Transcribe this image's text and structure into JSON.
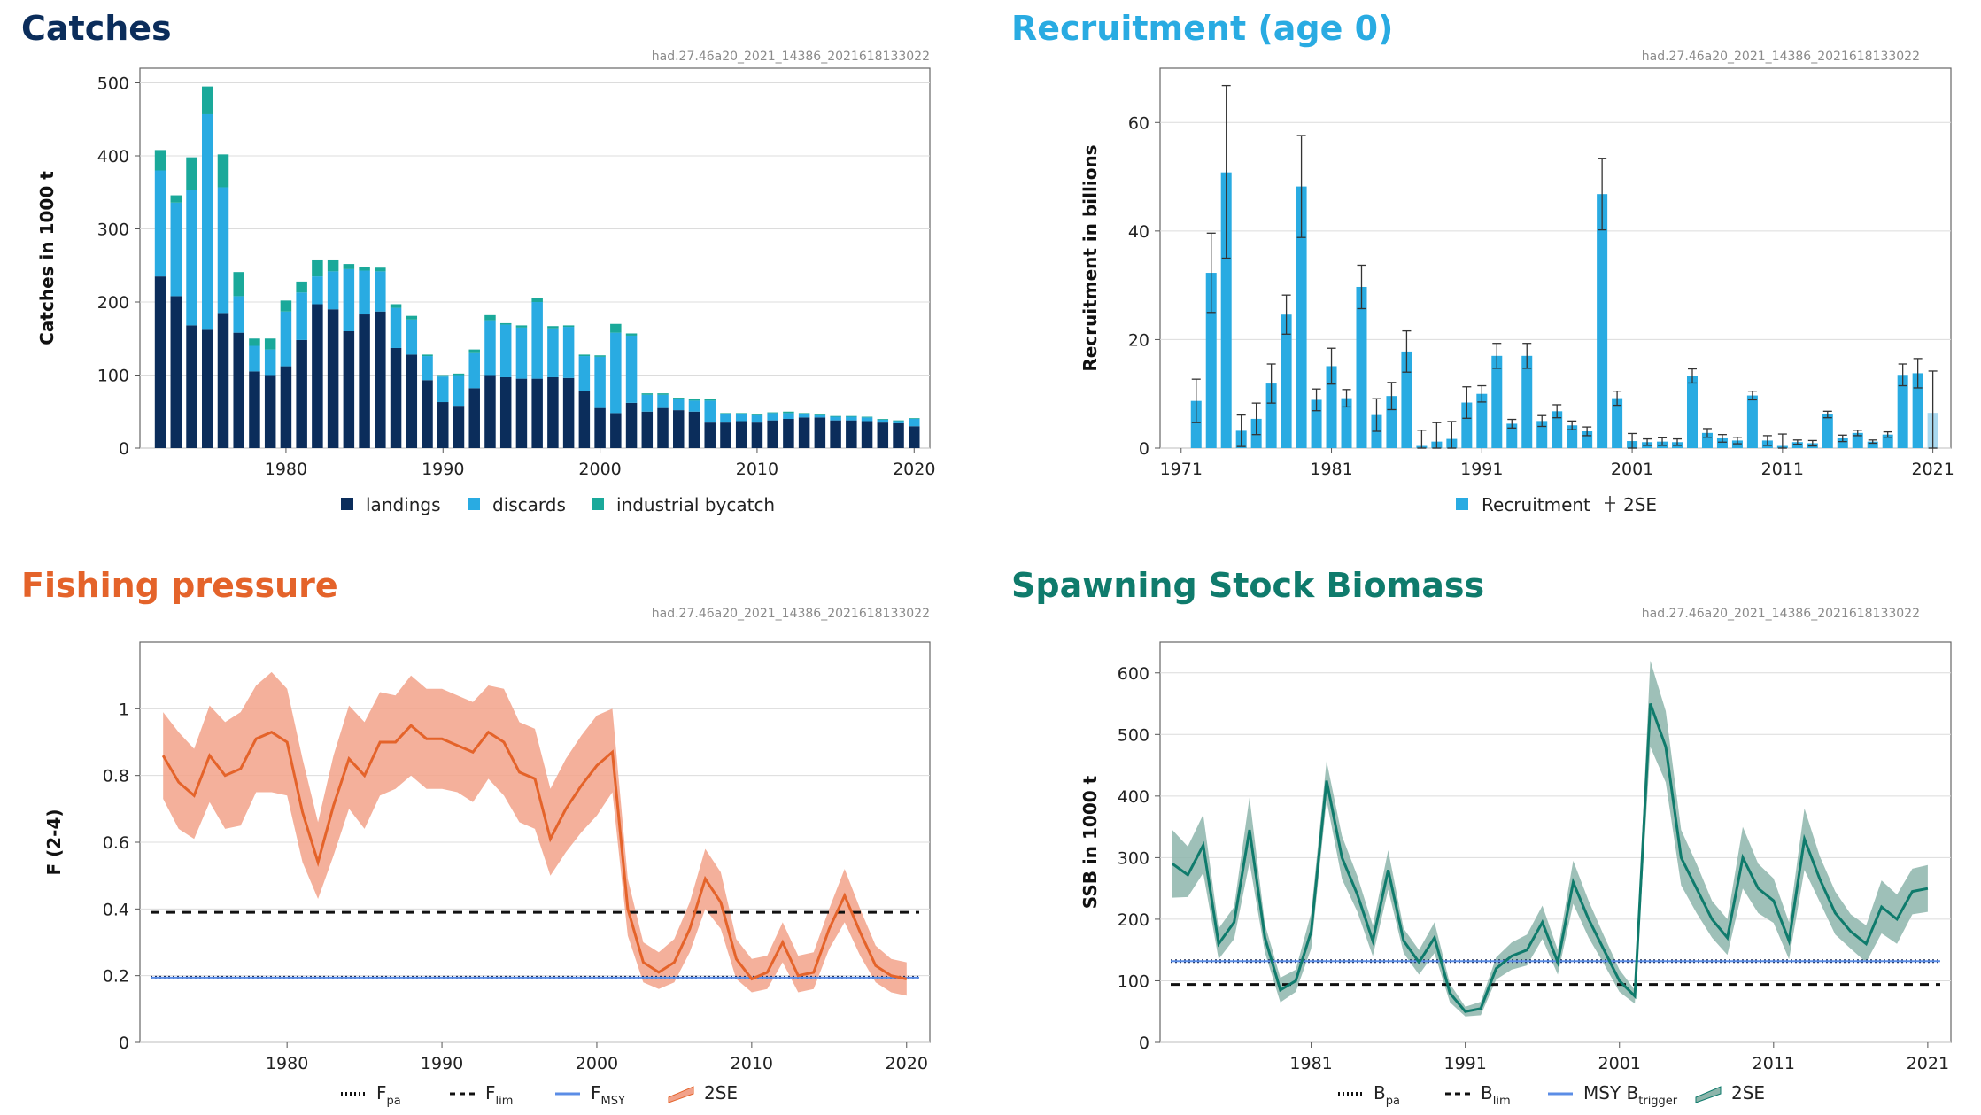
{
  "panels": {
    "catches": {
      "title": "Catches",
      "code": "had.27.46a20_2021_14386_2021618133022",
      "color": "#0b2d5b"
    },
    "recruitment": {
      "title": "Recruitment (age 0)",
      "code": "had.27.46a20_2021_14386_2021618133022",
      "color": "#29abe2"
    },
    "fishing": {
      "title": "Fishing pressure",
      "code": "had.27.46a20_2021_14386_2021618133022",
      "color": "#e4632a"
    },
    "ssb": {
      "title": "Spawning Stock Biomass",
      "code": "had.27.46a20_2021_14386_2021618133022",
      "color": "#0f7b6c"
    }
  },
  "chart_data": [
    {
      "type": "bar",
      "title": "Catches",
      "ylabel": "Catches in 1000 t",
      "xlabel": "",
      "ylim": [
        0,
        520
      ],
      "xlim": [
        1970.7,
        2021
      ],
      "yticks": [
        "0",
        "100",
        "200",
        "300",
        "400",
        "500"
      ],
      "xticks": [
        "1980",
        "1990",
        "2000",
        "2010",
        "2020"
      ],
      "stacked": true,
      "years": [
        1972,
        1973,
        1974,
        1975,
        1976,
        1977,
        1978,
        1979,
        1980,
        1981,
        1982,
        1983,
        1984,
        1985,
        1986,
        1987,
        1988,
        1989,
        1990,
        1991,
        1992,
        1993,
        1994,
        1995,
        1996,
        1997,
        1998,
        1999,
        2000,
        2001,
        2002,
        2003,
        2004,
        2005,
        2006,
        2007,
        2008,
        2009,
        2010,
        2011,
        2012,
        2013,
        2014,
        2015,
        2016,
        2017,
        2018,
        2019,
        2020
      ],
      "series": [
        {
          "name": "landings",
          "color": "#0b2d5b",
          "values": [
            235,
            208,
            168,
            162,
            185,
            158,
            105,
            100,
            112,
            148,
            197,
            190,
            160,
            183,
            187,
            137,
            128,
            93,
            63,
            58,
            82,
            100,
            97,
            95,
            95,
            97,
            96,
            78,
            55,
            48,
            62,
            50,
            55,
            52,
            50,
            35,
            35,
            37,
            35,
            38,
            40,
            42,
            42,
            38,
            38,
            37,
            35,
            34,
            30
          ]
        },
        {
          "name": "discards",
          "color": "#29abe2",
          "values": [
            145,
            128,
            185,
            295,
            172,
            50,
            35,
            35,
            75,
            65,
            38,
            52,
            85,
            60,
            55,
            55,
            48,
            33,
            35,
            42,
            48,
            75,
            72,
            70,
            105,
            67,
            70,
            48,
            70,
            110,
            92,
            23,
            18,
            15,
            15,
            30,
            12,
            10,
            10,
            10,
            8,
            5,
            3,
            5,
            5,
            5,
            4,
            3,
            10
          ]
        },
        {
          "name": "industrial bycatch",
          "color": "#1aa99a",
          "values": [
            28,
            10,
            45,
            38,
            45,
            33,
            10,
            15,
            15,
            15,
            22,
            15,
            7,
            5,
            5,
            5,
            5,
            2,
            2,
            2,
            5,
            7,
            2,
            3,
            5,
            3,
            2,
            2,
            2,
            12,
            3,
            2,
            2,
            2,
            2,
            2,
            1,
            1,
            1,
            1,
            2,
            1,
            1,
            1,
            1,
            1,
            1,
            1,
            1
          ]
        }
      ]
    },
    {
      "type": "bar",
      "title": "Recruitment (age 0)",
      "ylabel": "Recruitment in billions",
      "xlabel": "",
      "ylim": [
        0,
        70
      ],
      "xlim": [
        1969.6,
        2022.2
      ],
      "yticks": [
        "0",
        "20",
        "40",
        "60"
      ],
      "xticks": [
        "1971",
        "1981",
        "1991",
        "2001",
        "2011",
        "2021"
      ],
      "series": [
        {
          "name": "Recruitment",
          "color": "#29abe2",
          "years": [
            1972,
            1973,
            1974,
            1975,
            1976,
            1977,
            1978,
            1979,
            1980,
            1981,
            1982,
            1983,
            1984,
            1985,
            1986,
            1987,
            1988,
            1989,
            1990,
            1991,
            1992,
            1993,
            1994,
            1995,
            1996,
            1997,
            1998,
            1999,
            2000,
            2001,
            2002,
            2003,
            2004,
            2005,
            2006,
            2007,
            2008,
            2009,
            2010,
            2011,
            2012,
            2013,
            2014,
            2015,
            2016,
            2017,
            2018,
            2019,
            2020,
            2021
          ],
          "values": [
            8.7,
            32.3,
            50.8,
            3.2,
            5.4,
            11.9,
            24.6,
            48.2,
            8.9,
            15.1,
            9.2,
            29.7,
            6.1,
            9.6,
            17.8,
            0.4,
            1.2,
            1.7,
            8.4,
            10,
            17,
            4.5,
            17,
            5,
            6.8,
            4.2,
            3.1,
            46.8,
            9.2,
            1.3,
            1.1,
            1.2,
            1.1,
            13.3,
            2.8,
            1.8,
            1.4,
            9.7,
            1.4,
            0.4,
            1.1,
            0.9,
            6.2,
            1.8,
            2.8,
            1.2,
            2.5,
            13.5,
            13.8,
            6.5
          ],
          "upper": [
            12.7,
            39.6,
            66.8,
            6.1,
            8.3,
            15.5,
            28.2,
            57.6,
            10.9,
            18.4,
            10.8,
            33.7,
            9.1,
            12.1,
            21.6,
            3.3,
            4.7,
            4.9,
            11.3,
            11.5,
            19.3,
            5.3,
            19.3,
            6,
            8,
            5,
            3.9,
            53.4,
            10.5,
            2.7,
            1.7,
            1.9,
            1.7,
            14.6,
            3.6,
            2.5,
            2,
            10.5,
            2.3,
            2.6,
            1.5,
            1.4,
            6.8,
            2.4,
            3.3,
            1.5,
            3,
            15.5,
            16.5,
            14.2
          ],
          "lower": [
            4.7,
            25,
            35,
            0.3,
            2.5,
            8.3,
            21,
            38.8,
            6.9,
            11.8,
            7.6,
            25.7,
            3.1,
            7.1,
            14,
            0,
            0,
            0,
            5.5,
            8.5,
            14.7,
            3.7,
            14.7,
            4,
            5.6,
            3.4,
            2.3,
            40.2,
            7.9,
            0,
            0.5,
            0.5,
            0.5,
            12,
            2,
            1.1,
            0.8,
            8.9,
            0.5,
            0,
            0.7,
            0.4,
            5.6,
            1.2,
            2.3,
            0.9,
            2,
            11.5,
            11.1,
            0
          ]
        }
      ],
      "error_bars": "2SE"
    },
    {
      "type": "line",
      "title": "Fishing pressure",
      "ylabel": "F (2-4)",
      "xlabel": "",
      "ylim": [
        0,
        1.2
      ],
      "xlim": [
        1970.5,
        2021.5
      ],
      "yticks": [
        "0",
        "0.2",
        "0.4",
        "0.6",
        "0.8",
        "1"
      ],
      "xticks": [
        "1980",
        "1990",
        "2000",
        "2010",
        "2020"
      ],
      "x": [
        1972,
        1973,
        1974,
        1975,
        1976,
        1977,
        1978,
        1979,
        1980,
        1981,
        1982,
        1983,
        1984,
        1985,
        1986,
        1987,
        1988,
        1989,
        1990,
        1991,
        1992,
        1993,
        1994,
        1995,
        1996,
        1997,
        1998,
        1999,
        2000,
        2001,
        2002,
        2003,
        2004,
        2005,
        2006,
        2007,
        2008,
        2009,
        2010,
        2011,
        2012,
        2013,
        2014,
        2015,
        2016,
        2017,
        2018,
        2019,
        2020
      ],
      "series": [
        {
          "name": "F",
          "color": "#e4632a",
          "values": [
            0.86,
            0.78,
            0.74,
            0.86,
            0.8,
            0.82,
            0.91,
            0.93,
            0.9,
            0.69,
            0.54,
            0.71,
            0.85,
            0.8,
            0.9,
            0.9,
            0.95,
            0.91,
            0.91,
            0.89,
            0.87,
            0.93,
            0.9,
            0.81,
            0.79,
            0.61,
            0.7,
            0.77,
            0.83,
            0.87,
            0.4,
            0.24,
            0.21,
            0.24,
            0.34,
            0.49,
            0.42,
            0.25,
            0.19,
            0.21,
            0.3,
            0.2,
            0.21,
            0.34,
            0.44,
            0.33,
            0.23,
            0.2,
            0.19
          ],
          "upper": [
            0.99,
            0.93,
            0.88,
            1.01,
            0.96,
            0.99,
            1.07,
            1.11,
            1.06,
            0.85,
            0.66,
            0.86,
            1.01,
            0.96,
            1.05,
            1.04,
            1.1,
            1.06,
            1.06,
            1.04,
            1.02,
            1.07,
            1.06,
            0.96,
            0.94,
            0.76,
            0.85,
            0.92,
            0.98,
            1.0,
            0.49,
            0.3,
            0.27,
            0.31,
            0.42,
            0.58,
            0.51,
            0.31,
            0.25,
            0.26,
            0.36,
            0.26,
            0.27,
            0.4,
            0.52,
            0.4,
            0.29,
            0.25,
            0.24
          ],
          "lower": [
            0.73,
            0.64,
            0.61,
            0.72,
            0.64,
            0.65,
            0.75,
            0.75,
            0.74,
            0.54,
            0.43,
            0.56,
            0.7,
            0.64,
            0.74,
            0.76,
            0.8,
            0.76,
            0.76,
            0.75,
            0.72,
            0.79,
            0.74,
            0.66,
            0.64,
            0.5,
            0.57,
            0.63,
            0.68,
            0.75,
            0.32,
            0.18,
            0.16,
            0.18,
            0.27,
            0.4,
            0.34,
            0.19,
            0.15,
            0.16,
            0.24,
            0.15,
            0.16,
            0.28,
            0.36,
            0.26,
            0.18,
            0.15,
            0.14
          ]
        }
      ],
      "reference_lines": [
        {
          "name": "Fpa",
          "label": "F",
          "sub": "pa",
          "value": 0.194,
          "style": "dotted",
          "color": "#111111"
        },
        {
          "name": "Flim",
          "label": "F",
          "sub": "lim",
          "value": 0.39,
          "style": "dashed",
          "color": "#111111"
        },
        {
          "name": "FMSY",
          "label": "F",
          "sub": "MSY",
          "value": 0.194,
          "style": "solid",
          "color": "#5b8de6"
        }
      ],
      "band_label": "2SE"
    },
    {
      "type": "line",
      "title": "Spawning Stock Biomass",
      "ylabel": "SSB in 1000 t",
      "xlabel": "",
      "ylim": [
        0,
        650
      ],
      "xlim": [
        1971.2,
        2022.5
      ],
      "yticks": [
        "0",
        "100",
        "200",
        "300",
        "400",
        "500",
        "600"
      ],
      "xticks": [
        "1981",
        "1991",
        "2001",
        "2011",
        "2021"
      ],
      "x": [
        1972,
        1973,
        1974,
        1975,
        1976,
        1977,
        1978,
        1979,
        1980,
        1981,
        1982,
        1983,
        1984,
        1985,
        1986,
        1987,
        1988,
        1989,
        1990,
        1991,
        1992,
        1993,
        1994,
        1995,
        1996,
        1997,
        1998,
        1999,
        2000,
        2001,
        2002,
        2003,
        2004,
        2005,
        2006,
        2007,
        2008,
        2009,
        2010,
        2011,
        2012,
        2013,
        2014,
        2015,
        2016,
        2017,
        2018,
        2019,
        2020,
        2021
      ],
      "series": [
        {
          "name": "SSB",
          "color": "#0f7b6c",
          "values": [
            290,
            272,
            320,
            160,
            195,
            345,
            170,
            85,
            100,
            180,
            425,
            300,
            240,
            165,
            280,
            165,
            130,
            170,
            80,
            50,
            55,
            120,
            140,
            150,
            195,
            130,
            260,
            200,
            150,
            100,
            75,
            550,
            480,
            300,
            250,
            200,
            170,
            300,
            250,
            230,
            165,
            330,
            265,
            210,
            180,
            160,
            220,
            200,
            245,
            250
          ],
          "upper": [
            345,
            318,
            370,
            185,
            220,
            398,
            192,
            105,
            118,
            210,
            457,
            335,
            270,
            190,
            312,
            185,
            150,
            195,
            95,
            58,
            66,
            138,
            162,
            175,
            222,
            150,
            295,
            230,
            173,
            118,
            85,
            620,
            538,
            345,
            290,
            230,
            200,
            350,
            290,
            266,
            195,
            380,
            302,
            245,
            208,
            190,
            263,
            240,
            282,
            288
          ],
          "lower": [
            235,
            236,
            275,
            135,
            168,
            292,
            146,
            65,
            82,
            152,
            393,
            265,
            212,
            140,
            248,
            145,
            110,
            145,
            65,
            42,
            44,
            102,
            118,
            125,
            168,
            110,
            225,
            170,
            127,
            82,
            63,
            480,
            422,
            255,
            210,
            170,
            142,
            250,
            210,
            194,
            135,
            280,
            228,
            175,
            152,
            130,
            177,
            160,
            208,
            212
          ]
        }
      ],
      "reference_lines": [
        {
          "name": "Bpa",
          "label": "B",
          "sub": "pa",
          "value": 132,
          "style": "dotted",
          "color": "#111111"
        },
        {
          "name": "Blim",
          "label": "B",
          "sub": "lim",
          "value": 94,
          "style": "dashed",
          "color": "#111111"
        },
        {
          "name": "MSY Btrigger",
          "label": "MSY B",
          "sub": "trigger",
          "value": 132,
          "style": "solid",
          "color": "#5b8de6"
        }
      ],
      "band_label": "2SE"
    }
  ],
  "legends": {
    "catches": [
      "landings",
      "discards",
      "industrial bycatch"
    ],
    "recruitment": [
      "Recruitment",
      "2SE"
    ]
  }
}
